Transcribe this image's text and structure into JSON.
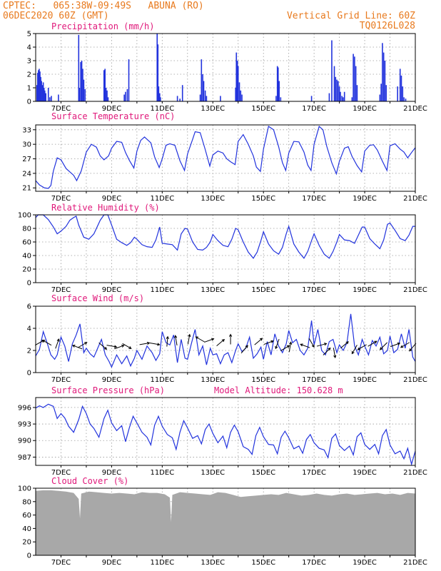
{
  "header": {
    "line1_left": "CPTEC:   065:38W-09:49S   ABUNA (RO)",
    "line2_left": "06DEC2020 60Z (GMT)",
    "line1_right": "Vertical Grid Line: 60Z",
    "line2_right": "TQ0126L028"
  },
  "colors": {
    "header": "#e87a1e",
    "title": "#e0187a",
    "line": "#2233dd",
    "cloud": "#a8a8a8",
    "grid": "#9a9a9a"
  },
  "x_axis": {
    "labels": [
      "7DEC",
      "9DEC",
      "11DEC",
      "13DEC",
      "15DEC",
      "17DEC",
      "19DEC",
      "21DEC"
    ],
    "start_day": 6.0,
    "end_day": 21.0,
    "label_days": [
      7,
      9,
      11,
      13,
      15,
      17,
      19,
      21
    ],
    "grid_days": [
      7,
      8,
      9,
      10,
      11,
      12,
      13,
      14,
      15,
      16,
      17,
      18,
      19,
      20
    ]
  },
  "chart_data": [
    {
      "type": "bar",
      "id": "precip",
      "title": "Precipitation (mm/h)",
      "ylim": [
        0,
        5
      ],
      "yticks": [
        0,
        1,
        2,
        3,
        4,
        5
      ],
      "x": [
        6.05,
        6.08,
        6.11,
        6.14,
        6.17,
        6.2,
        6.23,
        6.27,
        6.3,
        6.33,
        6.36,
        6.4,
        6.5,
        6.56,
        6.62,
        6.9,
        7.7,
        7.73,
        7.78,
        7.82,
        7.86,
        7.9,
        7.95,
        8.7,
        8.74,
        8.78,
        8.82,
        8.86,
        9.5,
        9.55,
        9.62,
        9.68,
        10.8,
        10.83,
        10.86,
        10.9,
        10.93,
        11.6,
        11.7,
        11.8,
        12.5,
        12.55,
        12.6,
        12.64,
        12.7,
        12.75,
        13.3,
        13.9,
        13.93,
        13.97,
        14.0,
        14.05,
        14.1,
        14.15,
        15.5,
        15.55,
        15.58,
        15.62,
        15.68,
        16.9,
        17.6,
        17.7,
        17.8,
        17.85,
        17.9,
        17.95,
        18.0,
        18.04,
        18.1,
        18.15,
        18.2,
        18.5,
        18.55,
        18.6,
        18.65,
        18.7,
        19.6,
        19.65,
        19.7,
        19.75,
        19.8,
        19.85,
        20.3,
        20.4,
        20.45,
        20.5,
        20.55,
        20.62
      ],
      "values": [
        1.2,
        2.1,
        2.3,
        2.4,
        2.2,
        1.8,
        1.5,
        1.2,
        1.4,
        1.0,
        0.8,
        0.6,
        1.0,
        0.3,
        0.4,
        0.5,
        4.9,
        1.0,
        2.9,
        3.0,
        2.4,
        1.6,
        0.9,
        2.3,
        2.4,
        1.0,
        0.8,
        0.3,
        0.5,
        0.7,
        0.9,
        3.1,
        5.0,
        4.2,
        1.1,
        0.6,
        0.3,
        0.4,
        0.2,
        1.2,
        0.5,
        3.1,
        2.0,
        1.5,
        0.8,
        0.4,
        0.4,
        1.0,
        3.6,
        3.0,
        2.6,
        1.4,
        0.8,
        0.5,
        0.4,
        2.6,
        2.5,
        1.5,
        0.3,
        0.4,
        0.6,
        4.5,
        2.6,
        1.8,
        1.6,
        1.5,
        1.1,
        0.7,
        0.4,
        0.3,
        0.7,
        0.3,
        3.5,
        3.3,
        2.6,
        1.2,
        0.5,
        1.3,
        4.3,
        3.6,
        3.0,
        1.2,
        1.1,
        2.4,
        1.9,
        1.1,
        0.3,
        0.2
      ]
    },
    {
      "type": "line",
      "id": "temp",
      "title": "Surface Temperature (nC)",
      "ylim": [
        20.3,
        34.0
      ],
      "yticks": [
        21,
        24,
        27,
        30,
        33
      ],
      "x": [
        6.0,
        6.15,
        6.35,
        6.5,
        6.6,
        6.7,
        6.85,
        7.0,
        7.2,
        7.5,
        7.62,
        7.8,
        8.0,
        8.2,
        8.4,
        8.55,
        8.7,
        8.88,
        9.0,
        9.2,
        9.4,
        9.55,
        9.7,
        9.88,
        10.0,
        10.15,
        10.3,
        10.55,
        10.7,
        10.88,
        11.0,
        11.15,
        11.3,
        11.5,
        11.7,
        11.88,
        12.0,
        12.2,
        12.3,
        12.5,
        12.7,
        12.88,
        13.0,
        13.2,
        13.4,
        13.55,
        13.7,
        13.88,
        14.0,
        14.2,
        14.4,
        14.6,
        14.72,
        14.88,
        15.0,
        15.2,
        15.4,
        15.6,
        15.75,
        15.88,
        16.0,
        16.2,
        16.4,
        16.6,
        16.75,
        16.88,
        17.0,
        17.2,
        17.35,
        17.5,
        17.7,
        17.88,
        18.0,
        18.2,
        18.35,
        18.5,
        18.7,
        18.88,
        19.0,
        19.2,
        19.35,
        19.5,
        19.7,
        19.88,
        20.0,
        20.2,
        20.4,
        20.55,
        20.7,
        20.88,
        21.0
      ],
      "values": [
        22.5,
        21.6,
        21.0,
        20.9,
        21.5,
        24.5,
        27.2,
        26.8,
        25.0,
        23.6,
        22.5,
        24.5,
        28.4,
        30.0,
        29.4,
        27.6,
        26.8,
        27.6,
        29.2,
        30.6,
        30.4,
        28.3,
        26.7,
        25.1,
        28.6,
        30.8,
        31.5,
        30.3,
        27.4,
        25.2,
        27.0,
        29.8,
        30.1,
        29.8,
        26.6,
        24.6,
        28.0,
        31.0,
        32.6,
        32.4,
        28.9,
        25.5,
        27.8,
        28.6,
        28.2,
        27.0,
        26.4,
        25.8,
        30.6,
        32.0,
        30.0,
        27.6,
        25.3,
        24.4,
        29.0,
        33.7,
        33.0,
        29.5,
        26.2,
        24.6,
        28.2,
        30.6,
        30.5,
        28.4,
        25.7,
        24.6,
        30.0,
        33.7,
        33.0,
        29.6,
        26.2,
        23.9,
        26.5,
        29.2,
        29.5,
        27.5,
        25.6,
        24.3,
        28.6,
        29.8,
        29.9,
        28.8,
        26.5,
        24.6,
        29.7,
        30.1,
        29.0,
        28.4,
        27.2,
        28.5,
        29.3
      ]
    },
    {
      "type": "line",
      "id": "rh",
      "title": "Relative Humidity (%)",
      "ylim": [
        0,
        100
      ],
      "yticks": [
        0,
        20,
        40,
        60,
        80,
        100
      ],
      "x": [
        6.0,
        6.1,
        6.3,
        6.5,
        6.7,
        6.85,
        7.0,
        7.2,
        7.35,
        7.5,
        7.6,
        7.7,
        7.9,
        8.1,
        8.3,
        8.55,
        8.7,
        8.85,
        9.0,
        9.2,
        9.4,
        9.6,
        9.75,
        9.9,
        10.0,
        10.2,
        10.4,
        10.6,
        10.75,
        10.9,
        11.0,
        11.2,
        11.4,
        11.6,
        11.75,
        11.9,
        12.0,
        12.2,
        12.4,
        12.6,
        12.75,
        12.9,
        13.0,
        13.2,
        13.4,
        13.6,
        13.75,
        13.9,
        14.0,
        14.2,
        14.4,
        14.6,
        14.75,
        14.9,
        15.0,
        15.2,
        15.4,
        15.6,
        15.75,
        15.9,
        16.0,
        16.2,
        16.4,
        16.6,
        16.75,
        16.9,
        17.0,
        17.2,
        17.4,
        17.6,
        17.75,
        17.9,
        18.0,
        18.2,
        18.4,
        18.6,
        18.75,
        18.9,
        19.0,
        19.2,
        19.4,
        19.6,
        19.75,
        19.9,
        20.0,
        20.2,
        20.4,
        20.6,
        20.75,
        20.9,
        21.0
      ],
      "values": [
        96,
        100,
        100,
        93,
        82,
        72,
        76,
        83,
        92,
        96,
        98,
        85,
        67,
        64,
        72,
        92,
        100,
        100,
        85,
        64,
        59,
        55,
        59,
        67,
        64,
        56,
        53,
        52,
        63,
        82,
        58,
        57,
        56,
        48,
        72,
        80,
        79,
        60,
        49,
        48,
        52,
        60,
        71,
        62,
        55,
        53,
        64,
        80,
        78,
        60,
        45,
        36,
        45,
        62,
        75,
        57,
        47,
        42,
        52,
        72,
        83,
        57,
        45,
        36,
        46,
        62,
        72,
        55,
        42,
        36,
        46,
        60,
        71,
        63,
        62,
        58,
        70,
        82,
        82,
        65,
        57,
        50,
        63,
        86,
        88,
        77,
        65,
        62,
        70,
        83,
        83
      ]
    },
    {
      "type": "line",
      "id": "wind",
      "title": "Surface Wind (m/s)",
      "ylim": [
        0,
        6
      ],
      "yticks": [
        0,
        2,
        4,
        6
      ],
      "x": [
        6.0,
        6.15,
        6.3,
        6.45,
        6.6,
        6.75,
        6.85,
        7.0,
        7.15,
        7.3,
        7.45,
        7.6,
        7.75,
        7.9,
        8.0,
        8.15,
        8.3,
        8.45,
        8.6,
        8.75,
        8.9,
        9.0,
        9.2,
        9.4,
        9.6,
        9.75,
        9.9,
        10.0,
        10.2,
        10.4,
        10.6,
        10.75,
        10.9,
        11.0,
        11.15,
        11.3,
        11.45,
        11.6,
        11.75,
        11.9,
        12.0,
        12.15,
        12.3,
        12.45,
        12.6,
        12.75,
        12.9,
        13.0,
        13.15,
        13.3,
        13.45,
        13.6,
        13.75,
        13.9,
        14.0,
        14.15,
        14.3,
        14.45,
        14.6,
        14.75,
        14.9,
        15.0,
        15.15,
        15.3,
        15.45,
        15.6,
        15.75,
        15.9,
        16.0,
        16.15,
        16.3,
        16.45,
        16.6,
        16.75,
        16.9,
        17.0,
        17.15,
        17.3,
        17.45,
        17.6,
        17.75,
        17.9,
        18.0,
        18.15,
        18.3,
        18.45,
        18.6,
        18.75,
        18.9,
        19.0,
        19.15,
        19.3,
        19.45,
        19.6,
        19.75,
        19.9,
        20.0,
        20.15,
        20.3,
        20.45,
        20.6,
        20.75,
        20.9,
        21.0
      ],
      "values": [
        1.5,
        2.1,
        3.7,
        2.7,
        1.6,
        1.2,
        1.6,
        3.2,
        2.4,
        1.0,
        2.6,
        3.4,
        4.4,
        1.8,
        2.2,
        1.7,
        1.4,
        2.2,
        3.0,
        1.6,
        1.0,
        0.5,
        1.6,
        0.8,
        1.5,
        0.6,
        1.3,
        2.0,
        1.2,
        2.4,
        1.8,
        1.1,
        1.7,
        3.7,
        2.7,
        2.5,
        3.4,
        0.9,
        3.0,
        1.3,
        1.2,
        2.6,
        3.9,
        1.6,
        2.4,
        0.7,
        2.2,
        1.6,
        1.7,
        0.8,
        1.6,
        1.8,
        0.9,
        2.0,
        2.6,
        1.9,
        2.2,
        3.2,
        1.3,
        1.7,
        2.3,
        1.2,
        2.8,
        1.6,
        3.5,
        2.4,
        1.8,
        2.6,
        3.8,
        2.7,
        3.0,
        2.0,
        1.6,
        2.2,
        4.7,
        2.5,
        3.9,
        2.0,
        1.6,
        2.8,
        3.0,
        1.8,
        2.5,
        2.0,
        2.7,
        5.3,
        2.4,
        1.6,
        3.0,
        2.4,
        1.6,
        2.9,
        2.4,
        3.2,
        1.7,
        2.0,
        3.3,
        1.8,
        2.1,
        3.5,
        2.2,
        3.9,
        1.4,
        1.0
      ],
      "arrows": [
        {
          "x": 6.15,
          "y": 2.7,
          "dir": -30
        },
        {
          "x": 6.45,
          "y": 2.7,
          "dir": -150
        },
        {
          "x": 6.85,
          "y": 2.6,
          "dir": -70
        },
        {
          "x": 7.65,
          "y": 2.3,
          "dir": 200
        },
        {
          "x": 7.85,
          "y": 2.5,
          "dir": -30
        },
        {
          "x": 8.65,
          "y": 2.4,
          "dir": 40
        },
        {
          "x": 9.0,
          "y": 2.4,
          "dir": 10
        },
        {
          "x": 9.3,
          "y": 2.3,
          "dir": -20
        },
        {
          "x": 9.6,
          "y": 2.4,
          "dir": 30
        },
        {
          "x": 10.3,
          "y": 2.6,
          "dir": -10
        },
        {
          "x": 10.7,
          "y": 2.6,
          "dir": 10
        },
        {
          "x": 11.2,
          "y": 2.8,
          "dir": -85
        },
        {
          "x": 11.55,
          "y": 2.9,
          "dir": -100
        },
        {
          "x": 12.05,
          "y": 3.0,
          "dir": -80
        },
        {
          "x": 12.5,
          "y": 3.0,
          "dir": -150
        },
        {
          "x": 12.85,
          "y": 2.9,
          "dir": -20
        },
        {
          "x": 13.3,
          "y": 2.7,
          "dir": -40
        },
        {
          "x": 13.7,
          "y": 3.0,
          "dir": -90
        },
        {
          "x": 14.25,
          "y": 2.1,
          "dir": -50
        },
        {
          "x": 14.8,
          "y": 2.8,
          "dir": -40
        },
        {
          "x": 15.2,
          "y": 2.7,
          "dir": -20
        },
        {
          "x": 15.55,
          "y": 2.6,
          "dir": 110
        },
        {
          "x": 15.85,
          "y": 2.2,
          "dir": -30
        },
        {
          "x": 16.05,
          "y": 2.3,
          "dir": -80
        },
        {
          "x": 16.65,
          "y": 2.4,
          "dir": -160
        },
        {
          "x": 16.9,
          "y": 2.7,
          "dir": 60
        },
        {
          "x": 17.3,
          "y": 2.5,
          "dir": -15
        },
        {
          "x": 17.5,
          "y": 1.9,
          "dir": -45
        },
        {
          "x": 17.8,
          "y": 1.8,
          "dir": 80
        },
        {
          "x": 18.2,
          "y": 2.5,
          "dir": -40
        },
        {
          "x": 18.6,
          "y": 2.1,
          "dir": 120
        },
        {
          "x": 18.9,
          "y": 2.3,
          "dir": 150
        },
        {
          "x": 19.3,
          "y": 2.6,
          "dir": -30
        },
        {
          "x": 19.75,
          "y": 2.4,
          "dir": 135
        },
        {
          "x": 20.2,
          "y": 2.5,
          "dir": -20
        },
        {
          "x": 20.6,
          "y": 2.5,
          "dir": 150
        },
        {
          "x": 20.9,
          "y": 2.3,
          "dir": 130
        }
      ]
    },
    {
      "type": "line",
      "id": "pres",
      "title": "Surface Pressure (hPa)",
      "annotation": "Model Altitude: 150.628 m",
      "ylim": [
        985.5,
        997.8
      ],
      "yticks": [
        987,
        990,
        993,
        996
      ],
      "x": [
        6.0,
        6.15,
        6.3,
        6.5,
        6.7,
        6.85,
        7.0,
        7.15,
        7.3,
        7.5,
        7.7,
        7.85,
        8.0,
        8.15,
        8.3,
        8.5,
        8.7,
        8.85,
        9.0,
        9.2,
        9.4,
        9.55,
        9.7,
        9.85,
        10.0,
        10.2,
        10.4,
        10.55,
        10.7,
        10.85,
        11.0,
        11.2,
        11.4,
        11.55,
        11.7,
        11.85,
        12.0,
        12.2,
        12.4,
        12.55,
        12.7,
        12.85,
        13.0,
        13.2,
        13.4,
        13.55,
        13.7,
        13.85,
        14.0,
        14.2,
        14.4,
        14.55,
        14.7,
        14.85,
        15.0,
        15.2,
        15.4,
        15.55,
        15.7,
        15.85,
        16.0,
        16.2,
        16.4,
        16.55,
        16.7,
        16.85,
        17.0,
        17.2,
        17.4,
        17.55,
        17.7,
        17.85,
        18.0,
        18.2,
        18.4,
        18.55,
        18.7,
        18.85,
        19.0,
        19.2,
        19.4,
        19.55,
        19.7,
        19.85,
        20.0,
        20.2,
        20.4,
        20.55,
        20.7,
        20.85,
        21.0
      ],
      "values": [
        995.9,
        996.3,
        996.0,
        996.6,
        996.2,
        994.0,
        994.9,
        994.1,
        992.6,
        991.5,
        993.8,
        996.2,
        994.9,
        993.0,
        992.2,
        990.6,
        994.0,
        995.5,
        993.2,
        991.8,
        992.7,
        989.8,
        992.3,
        994.4,
        993.2,
        991.5,
        990.6,
        989.2,
        992.8,
        994.4,
        992.6,
        991.1,
        990.5,
        988.4,
        991.5,
        993.6,
        992.3,
        990.4,
        990.9,
        989.4,
        992.0,
        993.0,
        991.3,
        989.6,
        990.8,
        988.7,
        991.5,
        992.8,
        991.6,
        988.9,
        988.4,
        987.5,
        990.9,
        992.4,
        990.7,
        989.3,
        989.2,
        987.6,
        990.6,
        991.7,
        990.5,
        988.5,
        989.0,
        987.7,
        990.2,
        991.1,
        989.6,
        988.6,
        988.3,
        986.9,
        990.4,
        991.2,
        989.1,
        988.2,
        989.0,
        987.4,
        990.7,
        991.4,
        989.3,
        988.4,
        989.3,
        987.6,
        990.9,
        992.0,
        989.2,
        987.6,
        988.1,
        986.7,
        988.6,
        985.7,
        988.1
      ]
    },
    {
      "type": "area",
      "id": "cloud",
      "title": "Cloud Cover (%)",
      "ylim": [
        0,
        100
      ],
      "yticks": [
        0,
        20,
        40,
        60,
        80,
        100
      ],
      "x": [
        6.0,
        6.3,
        6.6,
        6.9,
        7.2,
        7.5,
        7.7,
        7.75,
        7.8,
        8.1,
        8.4,
        8.7,
        9.0,
        9.3,
        9.6,
        9.9,
        10.2,
        10.5,
        10.8,
        11.1,
        11.3,
        11.35,
        11.4,
        11.7,
        12.0,
        12.3,
        12.6,
        12.9,
        13.2,
        13.5,
        13.8,
        14.1,
        14.4,
        14.7,
        15.0,
        15.3,
        15.6,
        15.9,
        16.2,
        16.5,
        16.8,
        17.1,
        17.4,
        17.7,
        18.0,
        18.3,
        18.6,
        18.9,
        19.2,
        19.5,
        19.8,
        20.1,
        20.4,
        20.7,
        21.0
      ],
      "values": [
        96,
        97,
        97,
        96,
        95,
        93,
        84,
        55,
        92,
        95,
        94,
        93,
        92,
        93,
        92,
        91,
        94,
        93,
        93,
        91,
        86,
        50,
        90,
        94,
        93,
        92,
        91,
        90,
        94,
        93,
        90,
        87,
        88,
        89,
        90,
        91,
        90,
        93,
        91,
        89,
        90,
        92,
        90,
        89,
        91,
        92,
        90,
        91,
        92,
        93,
        91,
        92,
        90,
        93,
        92
      ]
    }
  ]
}
